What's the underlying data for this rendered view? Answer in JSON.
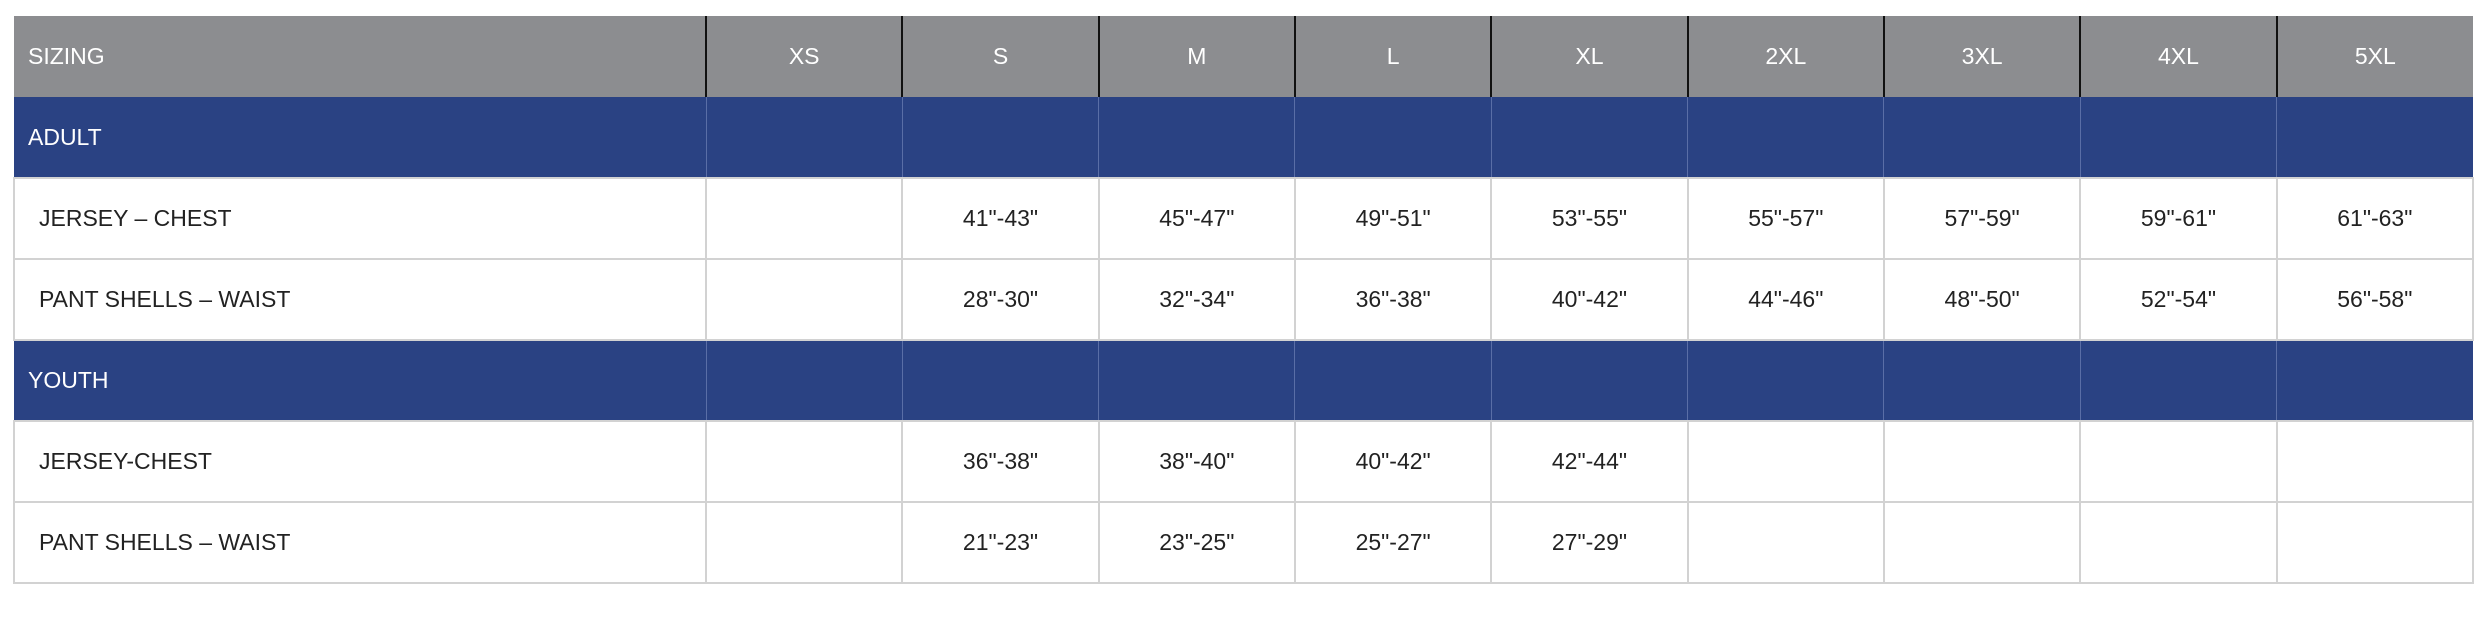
{
  "header": [
    "SIZING",
    "XS",
    "S",
    "M",
    "L",
    "XL",
    "2XL",
    "3XL",
    "4XL",
    "5XL"
  ],
  "groups": [
    {
      "label": "ADULT",
      "rows": [
        {
          "label": "JERSEY – CHEST",
          "values": [
            "",
            "41\"-43\"",
            "45\"-47\"",
            "49\"-51\"",
            "53\"-55\"",
            "55\"-57\"",
            "57\"-59\"",
            "59\"-61\"",
            "61\"-63\""
          ]
        },
        {
          "label": "PANT SHELLS – WAIST",
          "values": [
            "",
            "28\"-30\"",
            "32\"-34\"",
            "36\"-38\"",
            "40\"-42\"",
            "44\"-46\"",
            "48\"-50\"",
            "52\"-54\"",
            "56\"-58\""
          ]
        }
      ]
    },
    {
      "label": "YOUTH",
      "rows": [
        {
          "label": "JERSEY-CHEST",
          "values": [
            "",
            "36\"-38\"",
            "38\"-40\"",
            "40\"-42\"",
            "42\"-44\"",
            "",
            "",
            "",
            ""
          ]
        },
        {
          "label": "PANT SHELLS – WAIST",
          "values": [
            "",
            "21\"-23\"",
            "23\"-25\"",
            "25\"-27\"",
            "27\"-29\"",
            "",
            "",
            "",
            ""
          ]
        }
      ]
    }
  ],
  "colors": {
    "header_bg": "#8c8d90",
    "group_bg": "#2a4283",
    "border": "#d2d2d2"
  }
}
